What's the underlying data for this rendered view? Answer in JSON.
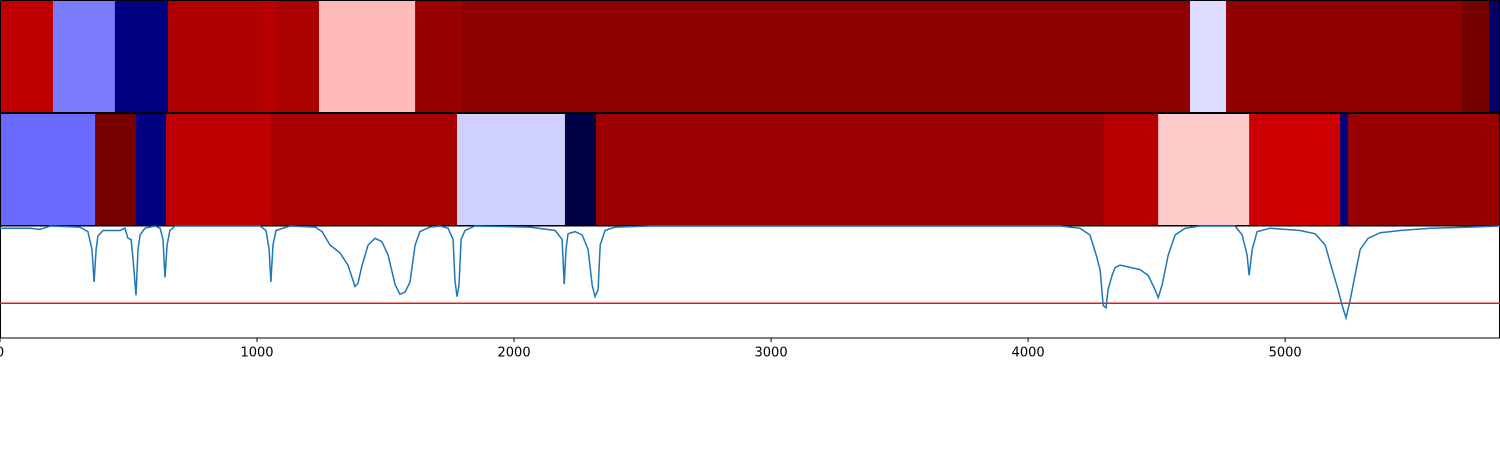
{
  "chart_data": {
    "type": "strips-line",
    "xlim": [
      0,
      5836
    ],
    "xticks": [
      0,
      1000,
      2000,
      3000,
      4000,
      5000
    ],
    "strips": [
      {
        "segments": [
          {
            "start": 0,
            "end": 206,
            "color": "#c00000"
          },
          {
            "start": 206,
            "end": 447,
            "color": "#7b7bff"
          },
          {
            "start": 447,
            "end": 654,
            "color": "#000080"
          },
          {
            "start": 654,
            "end": 1019,
            "color": "#b00000"
          },
          {
            "start": 1019,
            "end": 1074,
            "color": "#b80000"
          },
          {
            "start": 1074,
            "end": 1241,
            "color": "#aa0000"
          },
          {
            "start": 1241,
            "end": 1615,
            "color": "#ffbaba"
          },
          {
            "start": 1615,
            "end": 1798,
            "color": "#990000"
          },
          {
            "start": 1798,
            "end": 4630,
            "color": "#8c0000"
          },
          {
            "start": 4630,
            "end": 4770,
            "color": "#dcdcff"
          },
          {
            "start": 4770,
            "end": 5689,
            "color": "#900000"
          },
          {
            "start": 5689,
            "end": 5794,
            "color": "#750000"
          },
          {
            "start": 5794,
            "end": 5836,
            "color": "#000066"
          }
        ]
      },
      {
        "segments": [
          {
            "start": 0,
            "end": 370,
            "color": "#6a6aff"
          },
          {
            "start": 370,
            "end": 529,
            "color": "#7a0000"
          },
          {
            "start": 529,
            "end": 646,
            "color": "#000080"
          },
          {
            "start": 646,
            "end": 1054,
            "color": "#bf0000"
          },
          {
            "start": 1054,
            "end": 1778,
            "color": "#a80000"
          },
          {
            "start": 1778,
            "end": 2198,
            "color": "#d0d0ff"
          },
          {
            "start": 2198,
            "end": 2319,
            "color": "#000044"
          },
          {
            "start": 2319,
            "end": 4296,
            "color": "#9c0000"
          },
          {
            "start": 4296,
            "end": 4506,
            "color": "#b80000"
          },
          {
            "start": 4506,
            "end": 4860,
            "color": "#ffcccc"
          },
          {
            "start": 4860,
            "end": 5214,
            "color": "#cc0000"
          },
          {
            "start": 5214,
            "end": 5245,
            "color": "#000080"
          },
          {
            "start": 5245,
            "end": 5836,
            "color": "#990000"
          }
        ]
      }
    ],
    "ylim": [
      0,
      1
    ],
    "threshold": 0.31,
    "threshold_color": "#e41a1c",
    "line_color": "#1f77b4",
    "x": [
      0,
      117,
      156,
      195,
      311,
      342,
      358,
      366,
      374,
      381,
      401,
      428,
      467,
      486,
      498,
      510,
      518,
      529,
      537,
      545,
      564,
      603,
      623,
      634,
      642,
      650,
      661,
      681,
      1012,
      1035,
      1047,
      1054,
      1062,
      1074,
      1128,
      1226,
      1253,
      1284,
      1323,
      1354,
      1381,
      1393,
      1409,
      1432,
      1459,
      1486,
      1510,
      1537,
      1556,
      1576,
      1595,
      1615,
      1634,
      1673,
      1712,
      1743,
      1763,
      1770,
      1778,
      1786,
      1794,
      1809,
      1848,
      2062,
      2160,
      2187,
      2195,
      2202,
      2210,
      2237,
      2265,
      2288,
      2304,
      2315,
      2327,
      2335,
      2354,
      2393,
      2529,
      4125,
      4202,
      4241,
      4265,
      4280,
      4292,
      4303,
      4311,
      4327,
      4339,
      4358,
      4397,
      4436,
      4467,
      4494,
      4506,
      4521,
      4545,
      4572,
      4611,
      4669,
      4805,
      4833,
      4852,
      4860,
      4872,
      4891,
      4942,
      5058,
      5117,
      5156,
      5183,
      5206,
      5222,
      5237,
      5253,
      5272,
      5292,
      5323,
      5370,
      5447,
      5564,
      5720,
      5836
    ],
    "values": [
      0.98,
      0.98,
      0.97,
      1.0,
      0.99,
      0.95,
      0.79,
      0.5,
      0.79,
      0.91,
      0.96,
      0.96,
      0.96,
      0.98,
      0.89,
      0.88,
      0.7,
      0.38,
      0.79,
      0.92,
      0.98,
      1.0,
      0.98,
      0.88,
      0.54,
      0.83,
      0.96,
      1.0,
      1.0,
      0.96,
      0.79,
      0.5,
      0.83,
      0.96,
      1.0,
      0.99,
      0.95,
      0.83,
      0.76,
      0.65,
      0.46,
      0.49,
      0.65,
      0.83,
      0.89,
      0.86,
      0.74,
      0.48,
      0.39,
      0.41,
      0.5,
      0.83,
      0.95,
      0.99,
      1.0,
      0.98,
      0.88,
      0.52,
      0.37,
      0.47,
      0.88,
      0.96,
      1.0,
      0.99,
      0.96,
      0.88,
      0.48,
      0.79,
      0.93,
      0.95,
      0.92,
      0.79,
      0.47,
      0.37,
      0.43,
      0.83,
      0.96,
      0.99,
      1.0,
      1.0,
      0.98,
      0.92,
      0.74,
      0.61,
      0.29,
      0.27,
      0.43,
      0.56,
      0.63,
      0.65,
      0.63,
      0.61,
      0.56,
      0.43,
      0.36,
      0.47,
      0.74,
      0.92,
      0.98,
      1.0,
      1.0,
      0.92,
      0.74,
      0.56,
      0.79,
      0.95,
      0.98,
      0.96,
      0.93,
      0.83,
      0.61,
      0.43,
      0.29,
      0.18,
      0.34,
      0.56,
      0.79,
      0.89,
      0.94,
      0.96,
      0.98,
      0.99,
      1.0
    ]
  }
}
